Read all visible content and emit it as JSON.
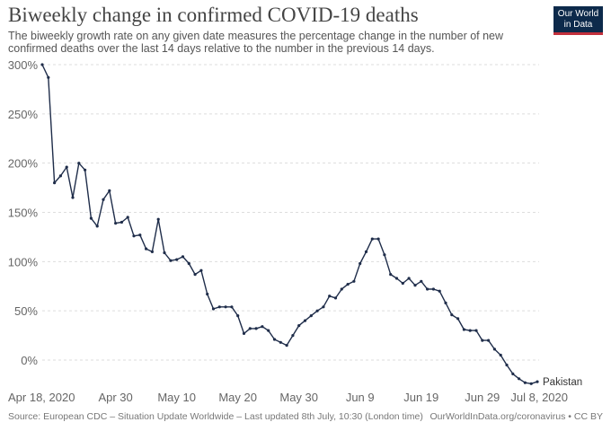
{
  "header": {
    "title": "Biweekly change in confirmed COVID-19 deaths",
    "subtitle": "The biweekly growth rate on any given date measures the percentage change in the number of new confirmed deaths over the last 14 days relative to the number in the previous 14 days."
  },
  "logo": {
    "line1": "Our World",
    "line2": "in Data"
  },
  "footer": {
    "source": "Source: European CDC – Situation Update Worldwide – Last updated 8th July, 10:30 (London time)",
    "credit": "OurWorldInData.org/coronavirus • CC BY"
  },
  "colors": {
    "line": "#1f2d4a",
    "grid": "#dddddd",
    "axis_text": "#666666",
    "logo_bg": "#0d2a4b",
    "logo_accent": "#c2303c"
  },
  "chart_data": {
    "type": "line",
    "grid": true,
    "x_tick_labels": [
      "Apr 18, 2020",
      "Apr 30",
      "May 10",
      "May 20",
      "May 30",
      "Jun 9",
      "Jun 19",
      "Jun 29",
      "Jul 8, 2020"
    ],
    "y_tick_labels": [
      "300%",
      "250%",
      "200%",
      "150%",
      "100%",
      "50%",
      "0%"
    ],
    "ylim": [
      -25,
      300
    ],
    "series": [
      {
        "name": "Pakistan",
        "x": [
          "2020-04-18",
          "2020-04-19",
          "2020-04-20",
          "2020-04-21",
          "2020-04-22",
          "2020-04-23",
          "2020-04-24",
          "2020-04-25",
          "2020-04-26",
          "2020-04-27",
          "2020-04-28",
          "2020-04-29",
          "2020-04-30",
          "2020-05-01",
          "2020-05-02",
          "2020-05-03",
          "2020-05-04",
          "2020-05-05",
          "2020-05-06",
          "2020-05-07",
          "2020-05-08",
          "2020-05-09",
          "2020-05-10",
          "2020-05-11",
          "2020-05-12",
          "2020-05-13",
          "2020-05-14",
          "2020-05-15",
          "2020-05-16",
          "2020-05-17",
          "2020-05-18",
          "2020-05-19",
          "2020-05-20",
          "2020-05-21",
          "2020-05-22",
          "2020-05-23",
          "2020-05-24",
          "2020-05-25",
          "2020-05-26",
          "2020-05-27",
          "2020-05-28",
          "2020-05-29",
          "2020-05-30",
          "2020-05-31",
          "2020-06-01",
          "2020-06-02",
          "2020-06-03",
          "2020-06-04",
          "2020-06-05",
          "2020-06-06",
          "2020-06-07",
          "2020-06-08",
          "2020-06-09",
          "2020-06-10",
          "2020-06-11",
          "2020-06-12",
          "2020-06-13",
          "2020-06-14",
          "2020-06-15",
          "2020-06-16",
          "2020-06-17",
          "2020-06-18",
          "2020-06-19",
          "2020-06-20",
          "2020-06-21",
          "2020-06-22",
          "2020-06-23",
          "2020-06-24",
          "2020-06-25",
          "2020-06-26",
          "2020-06-27",
          "2020-06-28",
          "2020-06-29",
          "2020-06-30",
          "2020-07-01",
          "2020-07-02",
          "2020-07-03",
          "2020-07-04",
          "2020-07-05",
          "2020-07-06",
          "2020-07-07",
          "2020-07-08"
        ],
        "y": [
          300,
          287,
          180,
          187,
          196,
          165,
          200,
          193,
          144,
          136,
          163,
          172,
          139,
          140,
          145,
          126,
          127,
          113,
          110,
          143,
          109,
          101,
          102,
          105,
          98,
          87,
          91,
          67,
          52,
          54,
          54,
          54,
          45,
          27,
          32,
          32,
          34,
          30,
          21,
          18,
          15,
          25,
          35,
          40,
          45,
          50,
          54,
          65,
          63,
          72,
          77,
          80,
          98,
          110,
          123,
          123,
          107,
          87,
          83,
          78,
          83,
          76,
          80,
          72,
          72,
          70,
          58,
          46,
          42,
          31,
          30,
          30,
          20,
          20,
          11,
          5,
          -5,
          -14,
          -19,
          -23,
          -24,
          -22
        ]
      }
    ],
    "annotations": [
      "Pakistan"
    ]
  }
}
